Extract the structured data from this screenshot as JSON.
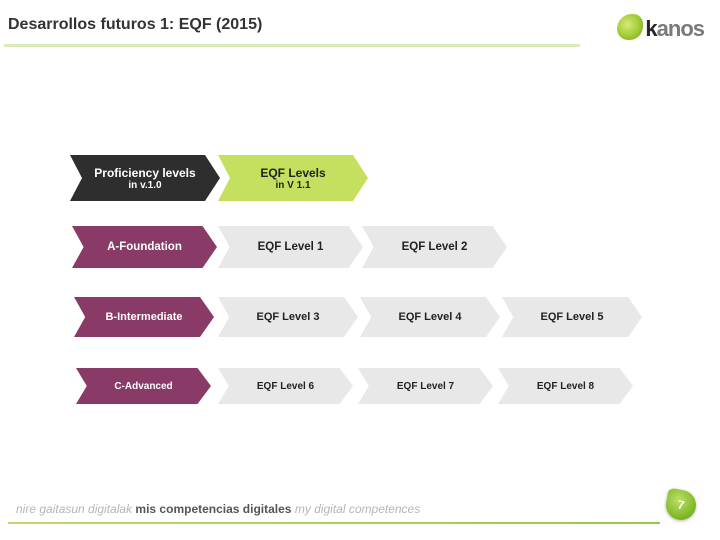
{
  "page": {
    "title": "Desarrollos futuros 1: EQF (2015)",
    "page_number": "7",
    "tagline_eu": "nire gaitasun digitalak ",
    "tagline_es": "mis competencias digitales ",
    "tagline_en": "my digital competences",
    "logo_text_1": "k",
    "logo_text_2": "anos"
  },
  "colors": {
    "accent_green": "#9cc83f",
    "dark_chevron": "#2e2e2e",
    "green_chevron": "#c5df5e",
    "purple_chevron": "#8a3a66",
    "gray_chevron": "#e8e8e8"
  },
  "rows": [
    {
      "kind": "header",
      "cells": [
        {
          "line1": "Proficiency levels",
          "line2": "in v.1.0",
          "style": "dark"
        },
        {
          "line1": "EQF Levels",
          "line2": "in V 1.1",
          "style": "green"
        }
      ]
    },
    {
      "kind": "data",
      "cells": [
        {
          "line1": "A-Foundation",
          "style": "purple"
        },
        {
          "line1": "EQF Level 1",
          "style": "gray"
        },
        {
          "line1": "EQF Level 2",
          "style": "gray"
        }
      ]
    },
    {
      "kind": "data",
      "cells": [
        {
          "line1": "B-Intermediate",
          "style": "purple"
        },
        {
          "line1": "EQF Level 3",
          "style": "gray"
        },
        {
          "line1": "EQF Level 4",
          "style": "gray"
        },
        {
          "line1": "EQF Level 5",
          "style": "gray"
        }
      ]
    },
    {
      "kind": "data",
      "cells": [
        {
          "line1": "C-Advanced",
          "style": "purple"
        },
        {
          "line1": "EQF Level 6",
          "style": "gray"
        },
        {
          "line1": "EQF Level 7",
          "style": "gray"
        },
        {
          "line1": "EQF Level 8",
          "style": "gray"
        }
      ]
    }
  ]
}
